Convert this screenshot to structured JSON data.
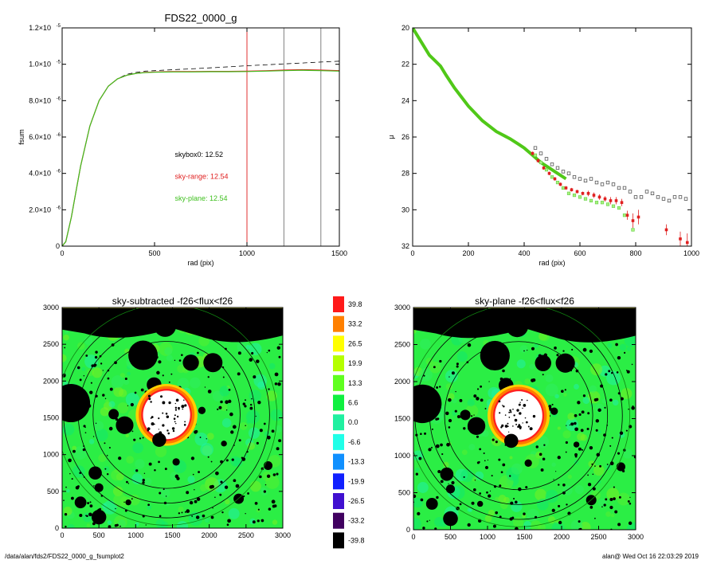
{
  "charts": {
    "fsum": {
      "type": "line",
      "title": "FDS22_0000_g",
      "xlabel": "rad (pix)",
      "ylabel": "fsum",
      "xlim": [
        0,
        1500
      ],
      "ylim": [
        0,
        1.2e-05
      ],
      "xticks": [
        0,
        500,
        1000,
        1500
      ],
      "yticks": [
        {
          "v": 0,
          "label": "0"
        },
        {
          "v": 2e-06,
          "label": "2.0×10",
          "exp": "-6"
        },
        {
          "v": 4e-06,
          "label": "4.0×10",
          "exp": "-6"
        },
        {
          "v": 6e-06,
          "label": "6.0×10",
          "exp": "-6"
        },
        {
          "v": 8e-06,
          "label": "8.0×10",
          "exp": "-6"
        },
        {
          "v": 1e-05,
          "label": "1.0×10",
          "exp": "-5"
        },
        {
          "v": 1.2e-05,
          "label": "1.2×10",
          "exp": "-5"
        }
      ],
      "vlines": [
        {
          "x": 1000,
          "color": "#e03030"
        },
        {
          "x": 1200,
          "color": "#808080"
        },
        {
          "x": 1400,
          "color": "#808080"
        }
      ],
      "series": [
        {
          "color": "#000000",
          "dashed": true,
          "x": [
            0,
            20,
            50,
            80,
            100,
            150,
            200,
            250,
            300,
            350,
            400,
            450,
            500,
            600,
            700,
            800,
            900,
            1000,
            1100,
            1200,
            1300,
            1400,
            1500
          ],
          "y": [
            0,
            2.5e-07,
            1.6e-06,
            3.3e-06,
            4.4e-06,
            6.6e-06,
            8e-06,
            8.8e-06,
            9.2e-06,
            9.45e-06,
            9.55e-06,
            9.62e-06,
            9.65e-06,
            9.7e-06,
            9.75e-06,
            9.8e-06,
            9.86e-06,
            9.92e-06,
            9.97e-06,
            1.002e-05,
            1.007e-05,
            1.012e-05,
            1.017e-05
          ]
        },
        {
          "color": "#e02020",
          "dashed": false,
          "x": [
            0,
            20,
            50,
            80,
            100,
            150,
            200,
            250,
            300,
            350,
            400,
            450,
            500,
            600,
            700,
            800,
            900,
            1000,
            1100,
            1200,
            1300,
            1400,
            1500
          ],
          "y": [
            0,
            2.5e-07,
            1.6e-06,
            3.3e-06,
            4.4e-06,
            6.6e-06,
            8e-06,
            8.8e-06,
            9.2e-06,
            9.4e-06,
            9.5e-06,
            9.55e-06,
            9.58e-06,
            9.6e-06,
            9.6e-06,
            9.61e-06,
            9.61e-06,
            9.62e-06,
            9.64e-06,
            9.68e-06,
            9.7e-06,
            9.68e-06,
            9.65e-06
          ]
        },
        {
          "color": "#40c020",
          "dashed": false,
          "x": [
            0,
            20,
            50,
            80,
            100,
            150,
            200,
            250,
            300,
            350,
            400,
            450,
            500,
            600,
            700,
            800,
            900,
            1000,
            1100,
            1200,
            1300,
            1400,
            1500
          ],
          "y": [
            0,
            2.5e-07,
            1.6e-06,
            3.3e-06,
            4.4e-06,
            6.6e-06,
            8e-06,
            8.8e-06,
            9.2e-06,
            9.4e-06,
            9.5e-06,
            9.54e-06,
            9.56e-06,
            9.58e-06,
            9.58e-06,
            9.59e-06,
            9.59e-06,
            9.6e-06,
            9.62e-06,
            9.65e-06,
            9.67e-06,
            9.65e-06,
            9.62e-06
          ]
        }
      ],
      "annotations": [
        {
          "text": "skybox0: 12.52",
          "color": "#000000",
          "x": 610,
          "y": 4.9e-06
        },
        {
          "text": "sky-range: 12.54",
          "color": "#e02020",
          "x": 610,
          "y": 3.7e-06
        },
        {
          "text": "sky-plane: 12.54",
          "color": "#40c020",
          "x": 610,
          "y": 2.5e-06
        }
      ]
    },
    "mu": {
      "type": "scatter",
      "xlabel": "rad (pix)",
      "ylabel": "μ",
      "xlim": [
        0,
        1000
      ],
      "ylim": [
        32,
        20
      ],
      "xticks": [
        0,
        200,
        400,
        600,
        800,
        1000
      ],
      "yticks": [
        20,
        22,
        24,
        26,
        28,
        30,
        32
      ],
      "green_curve": {
        "x": [
          0,
          20,
          40,
          60,
          80,
          100,
          120,
          150,
          200,
          250,
          300,
          350,
          380,
          400,
          430,
          460,
          490,
          520,
          550
        ],
        "y": [
          20.0,
          20.5,
          21.0,
          21.5,
          21.8,
          22.1,
          22.6,
          23.3,
          24.3,
          25.1,
          25.7,
          26.1,
          26.4,
          26.6,
          27.0,
          27.4,
          27.7,
          28.0,
          28.3
        ]
      },
      "gray_points": {
        "x": [
          440,
          460,
          480,
          500,
          520,
          540,
          560,
          580,
          600,
          620,
          640,
          660,
          680,
          700,
          720,
          740,
          760,
          780,
          800,
          820,
          840,
          860,
          880,
          900,
          920,
          940,
          960,
          980
        ],
        "y": [
          26.6,
          26.9,
          27.2,
          27.5,
          27.7,
          27.9,
          28.0,
          28.2,
          28.3,
          28.4,
          28.3,
          28.5,
          28.6,
          28.5,
          28.6,
          28.8,
          28.8,
          29.0,
          29.3,
          29.3,
          29.0,
          29.1,
          29.3,
          29.4,
          29.5,
          29.3,
          29.3,
          29.4
        ]
      },
      "red_points": {
        "x": [
          430,
          450,
          470,
          490,
          510,
          530,
          550,
          570,
          590,
          610,
          630,
          650,
          670,
          690,
          710,
          730,
          750,
          770,
          790,
          810,
          910,
          960,
          985
        ],
        "y": [
          26.9,
          27.3,
          27.7,
          28.0,
          28.3,
          28.6,
          28.8,
          28.9,
          29.0,
          29.1,
          29.1,
          29.2,
          29.3,
          29.4,
          29.5,
          29.5,
          29.6,
          30.3,
          30.6,
          30.4,
          31.1,
          31.6,
          31.8
        ],
        "err": [
          0.1,
          0.1,
          0.1,
          0.1,
          0.1,
          0.1,
          0.1,
          0.1,
          0.1,
          0.1,
          0.15,
          0.15,
          0.15,
          0.15,
          0.2,
          0.2,
          0.2,
          0.25,
          0.4,
          0.4,
          0.3,
          0.4,
          0.5
        ]
      },
      "green_points": {
        "x": [
          440,
          460,
          480,
          500,
          520,
          540,
          560,
          580,
          600,
          620,
          640,
          660,
          680,
          700,
          720,
          740,
          760,
          790
        ],
        "y": [
          27.0,
          27.4,
          27.8,
          28.2,
          28.5,
          28.8,
          29.1,
          29.2,
          29.3,
          29.4,
          29.5,
          29.6,
          29.6,
          29.7,
          29.8,
          29.9,
          30.3,
          31.1
        ]
      }
    },
    "map_left": {
      "type": "heatmap",
      "title": "sky-subtracted -f26<flux<f26",
      "xlim": [
        0,
        3000
      ],
      "ylim": [
        0,
        3000
      ],
      "xticks": [
        0,
        500,
        1000,
        1500,
        2000,
        2500,
        3000
      ],
      "yticks": [
        0,
        500,
        1000,
        1500,
        2000,
        2500,
        3000
      ]
    },
    "map_right": {
      "type": "heatmap",
      "title": "sky-plane -f26<flux<f26",
      "xlim": [
        0,
        3000
      ],
      "ylim": [
        0,
        3000
      ],
      "xticks": [
        0,
        500,
        1000,
        1500,
        2000,
        2500,
        3000
      ],
      "yticks": [
        0,
        500,
        1000,
        1500,
        2000,
        2500,
        3000
      ]
    },
    "colorbar": {
      "levels": [
        {
          "label": "39.8",
          "color": "#ff1a1a"
        },
        {
          "label": "33.2",
          "color": "#ff8000"
        },
        {
          "label": "26.5",
          "color": "#ffff00"
        },
        {
          "label": "19.9",
          "color": "#b5ff00"
        },
        {
          "label": "13.3",
          "color": "#60ff20"
        },
        {
          "label": "6.6",
          "color": "#10f040"
        },
        {
          "label": "0.0",
          "color": "#20f0a0"
        },
        {
          "label": "-6.6",
          "color": "#20ffe8"
        },
        {
          "label": "-13.3",
          "color": "#1090ff"
        },
        {
          "label": "-19.9",
          "color": "#1020ff"
        },
        {
          "label": "-26.5",
          "color": "#4010d0"
        },
        {
          "label": "-33.2",
          "color": "#400060"
        },
        {
          "label": "-39.8",
          "color": "#000000"
        }
      ]
    }
  },
  "footer": {
    "left": "/data/alan/fds2/FDS22_0000_g_fsumplot2",
    "right": "alan@  Wed Oct 16 22:03:29 2019"
  }
}
